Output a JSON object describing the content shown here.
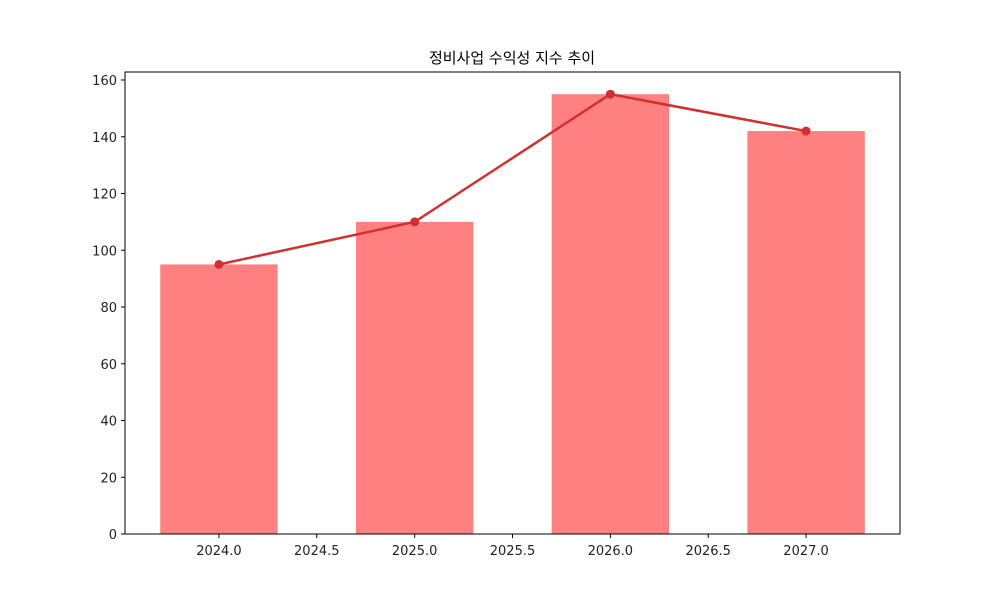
{
  "chart_data": {
    "type": "bar+line",
    "title": "정비사업 수익성 지수 추이",
    "xlabel": "",
    "ylabel": "",
    "x": [
      2024,
      2025,
      2026,
      2027
    ],
    "series": [
      {
        "name": "bar",
        "type": "bar",
        "values": [
          95,
          110,
          155,
          142
        ],
        "color": "#ff8080",
        "bar_width": 0.6
      },
      {
        "name": "line",
        "type": "line",
        "values": [
          95,
          110,
          155,
          142
        ],
        "color": "#d03030",
        "marker": "circle"
      }
    ],
    "xlim": [
      2023.52,
      2027.48
    ],
    "ylim": [
      0,
      162
    ],
    "xticks": [
      "2024.0",
      "2024.5",
      "2025.0",
      "2025.5",
      "2026.0",
      "2026.5",
      "2027.0"
    ],
    "xtick_values": [
      2024.0,
      2024.5,
      2025.0,
      2025.5,
      2026.0,
      2026.5,
      2027.0
    ],
    "yticks": [
      "0",
      "20",
      "40",
      "60",
      "80",
      "100",
      "120",
      "140",
      "160"
    ],
    "ytick_values": [
      0,
      20,
      40,
      60,
      80,
      100,
      120,
      140,
      160
    ],
    "grid": false,
    "legend": null
  }
}
